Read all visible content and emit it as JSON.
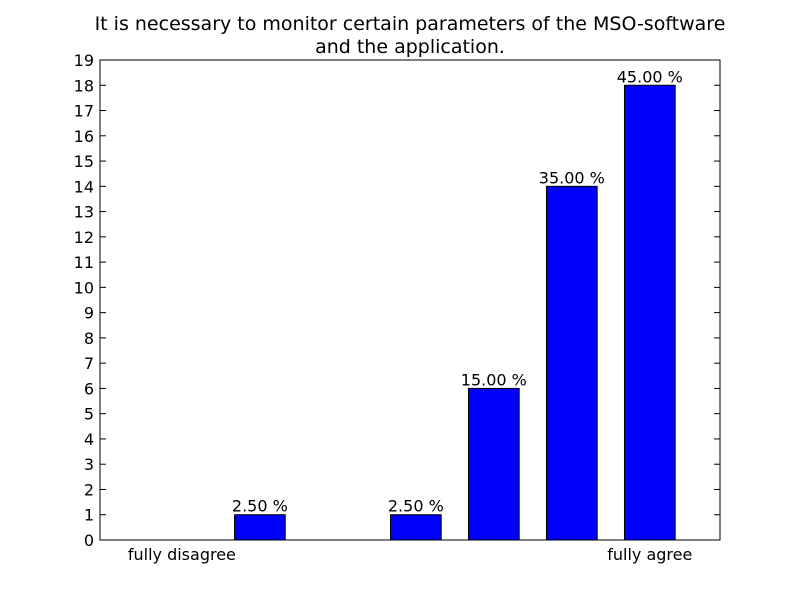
{
  "chart_data": {
    "type": "bar",
    "title": "It is necessary to monitor certain parameters of the MSO-software and the application.",
    "title_lines": [
      "It is necessary to monitor certain parameters of the MSO-software",
      "and the application."
    ],
    "xlabel": "",
    "ylabel": "",
    "categories": [
      "fully disagree",
      "",
      "",
      "",
      "",
      "",
      "fully agree"
    ],
    "values": [
      0,
      1,
      0,
      1,
      6,
      14,
      18
    ],
    "data_labels": [
      "",
      "2.50 %",
      "",
      "2.50 %",
      "15.00 %",
      "35.00 %",
      "45.00 %"
    ],
    "ylim": [
      0,
      19
    ],
    "yticks": [
      0,
      1,
      2,
      3,
      4,
      5,
      6,
      7,
      8,
      9,
      10,
      11,
      12,
      13,
      14,
      15,
      16,
      17,
      18,
      19
    ],
    "grid": false,
    "legend": "none",
    "bar_color": "#0000ff",
    "edge_color": "#000000"
  }
}
